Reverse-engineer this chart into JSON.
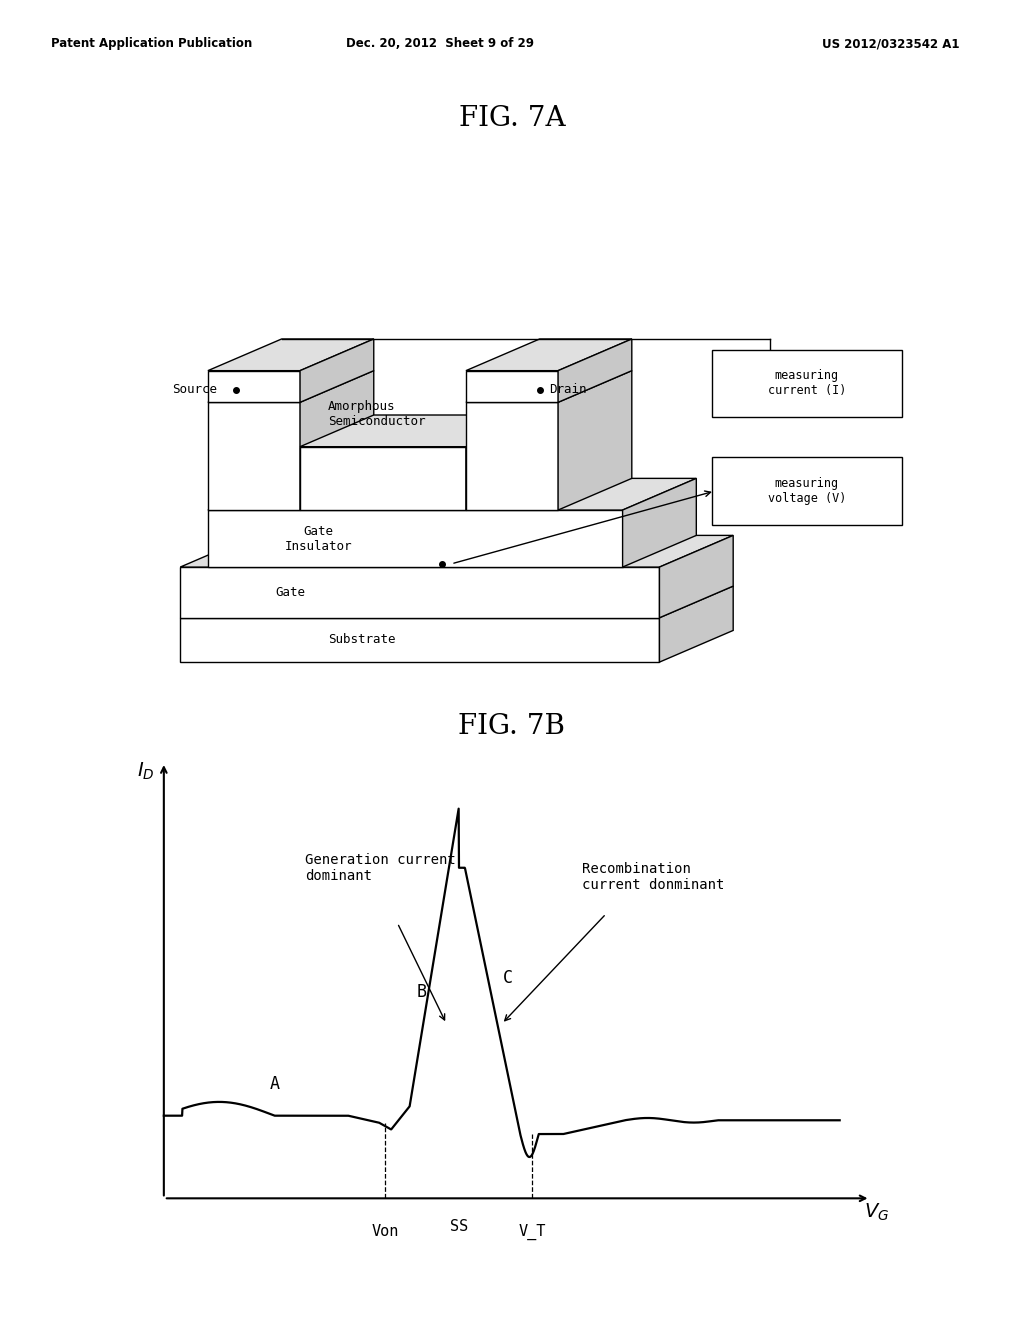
{
  "header_left": "Patent Application Publication",
  "header_mid": "Dec. 20, 2012  Sheet 9 of 29",
  "header_right": "US 2012/0323542 A1",
  "fig7a_title": "FIG. 7A",
  "fig7b_title": "FIG. 7B",
  "bg_color": "#ffffff",
  "text_color": "#000000",
  "line_color": "#000000",
  "source_label": "Source",
  "amorphous_label": "Amorphous\nSemiconductor",
  "drain_label": "Drain",
  "gate_insulator_label": "Gate\nInsulator",
  "gate_label": "Gate",
  "substrate_label": "Substrate",
  "measuring_current_label": "measuring\ncurrent (I)",
  "measuring_voltage_label": "measuring\nvoltage (V)",
  "id_label": "I_D",
  "vg_label": "V_G",
  "von_label": "Von",
  "vt_label": "V_T",
  "ss_label": "SS",
  "A_label": "A",
  "B_label": "B",
  "C_label": "C",
  "gen_current_label": "Generation current\ndominant",
  "recomb_current_label": "Recombination\ncurrent donminant"
}
